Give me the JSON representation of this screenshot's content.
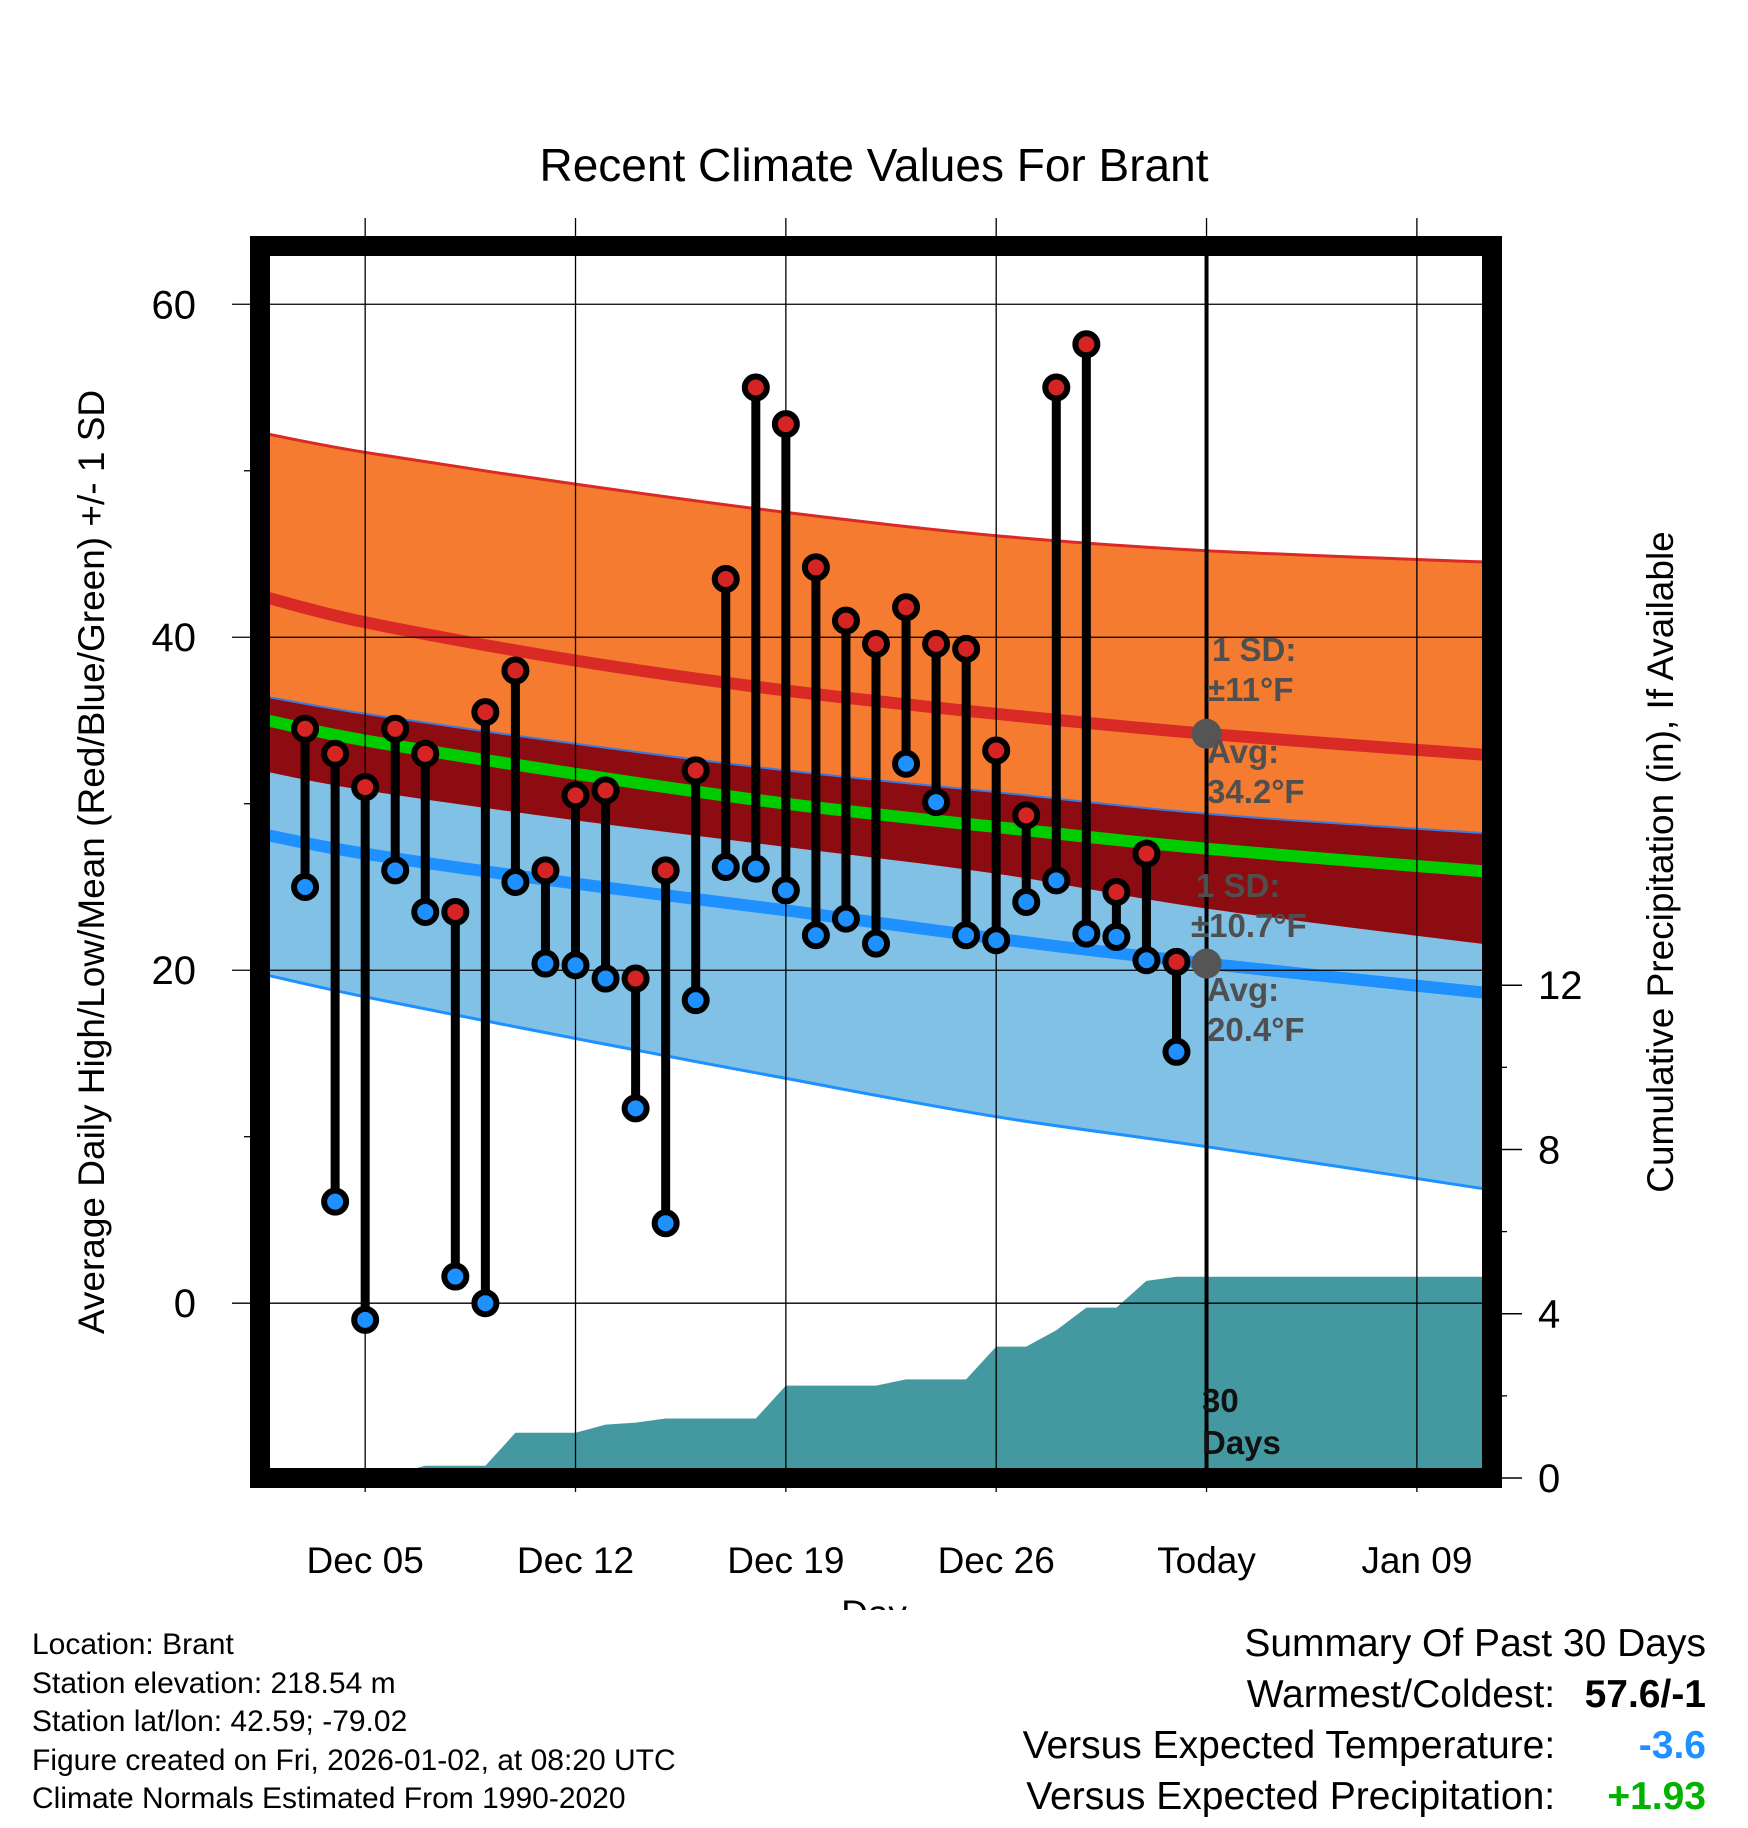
{
  "chart_data": {
    "type": "line",
    "title": "Recent Climate Values For Brant",
    "xlabel": "Day",
    "ylabel": "Average Daily High/Low/Mean (Red/Blue/Green) +/- 1 SD",
    "y2label": "Cumulative Precipitation (in), If Available",
    "ylim": [
      -10.5,
      63.5
    ],
    "y2lim": [
      0,
      30
    ],
    "xlim": [
      -3.5,
      37.5
    ],
    "x_tick_labels": [
      "Dec 05",
      "Dec 12",
      "Dec 19",
      "Dec 26",
      "Today",
      "Jan 09"
    ],
    "x_tick_days": [
      0,
      7,
      14,
      21,
      28,
      35
    ],
    "y_ticks": [
      0,
      20,
      40,
      60
    ],
    "y2_ticks": [
      0,
      4,
      8,
      12
    ],
    "days": [
      -2,
      -1,
      0,
      1,
      2,
      3,
      4,
      5,
      6,
      7,
      8,
      9,
      10,
      11,
      12,
      13,
      14,
      15,
      16,
      17,
      18,
      19,
      20,
      21,
      22,
      23,
      24,
      25,
      26,
      27
    ],
    "highs": [
      34.5,
      33.0,
      31.0,
      34.5,
      33.0,
      23.5,
      35.5,
      38.0,
      26.0,
      30.5,
      30.8,
      19.5,
      26.0,
      32.0,
      43.5,
      55.0,
      52.8,
      44.2,
      41.0,
      39.6,
      41.8,
      39.6,
      39.3,
      33.2,
      29.3,
      55.0,
      57.6,
      24.7,
      27.0,
      20.5
    ],
    "lows": [
      25.0,
      6.1,
      -1.0,
      26.0,
      23.5,
      1.6,
      0.0,
      25.3,
      20.4,
      20.3,
      19.5,
      11.7,
      4.8,
      18.2,
      26.2,
      26.1,
      24.8,
      22.1,
      23.1,
      21.6,
      32.4,
      30.1,
      22.1,
      21.8,
      24.1,
      25.4,
      22.2,
      22.0,
      20.6,
      15.1
    ],
    "normals": {
      "days": [
        -3.5,
        0,
        7,
        14,
        21,
        28,
        37.5
      ],
      "high_avg": [
        42.5,
        40.9,
        38.6,
        36.8,
        35.4,
        34.2,
        32.9
      ],
      "high_upper": [
        52.3,
        51.1,
        49.2,
        47.5,
        46.1,
        45.2,
        44.5
      ],
      "mean_avg": [
        35.1,
        33.8,
        31.8,
        30.0,
        28.6,
        27.3,
        25.9
      ],
      "low_avg": [
        28.2,
        27.0,
        25.2,
        23.6,
        21.9,
        20.4,
        18.6
      ],
      "high_lower": [
        36.5,
        35.4,
        33.6,
        32.0,
        30.7,
        29.4,
        28.2
      ],
      "low_lower": [
        19.8,
        18.4,
        15.9,
        13.5,
        11.2,
        9.4,
        6.8
      ],
      "low_upper": [
        32.0,
        30.8,
        29.0,
        27.4,
        25.8,
        23.7,
        21.5
      ]
    },
    "precip": {
      "days": [
        -3.5,
        -1,
        0,
        1,
        2,
        3,
        4,
        5,
        6,
        7,
        8,
        9,
        10,
        11,
        12,
        13,
        14,
        15,
        16,
        17,
        18,
        19,
        20,
        21,
        22,
        23,
        24,
        25,
        26,
        27,
        28,
        37.5
      ],
      "cum": [
        0,
        0.05,
        0.1,
        0.1,
        0.3,
        0.3,
        0.3,
        1.1,
        1.1,
        1.1,
        1.3,
        1.35,
        1.45,
        1.45,
        1.45,
        1.45,
        2.25,
        2.25,
        2.25,
        2.25,
        2.4,
        2.4,
        2.4,
        3.2,
        3.2,
        3.6,
        4.15,
        4.15,
        4.8,
        4.9,
        4.9,
        4.9
      ]
    },
    "annotations": {
      "high_sd_line1": "1 SD:",
      "high_sd_line2": "±11°F",
      "high_avg_line1": "Avg:",
      "high_avg_line2": "34.2°F",
      "high_avg_value": 34.2,
      "low_sd_line1": "1 SD:",
      "low_sd_line2": "±10.7°F",
      "low_avg_line1": "Avg:",
      "low_avg_line2": "20.4°F",
      "low_avg_value": 20.4,
      "days_line1": "30",
      "days_line2": "Days"
    },
    "colors": {
      "high_band": "#f47b30",
      "high_line": "#d92a25",
      "overlap_band": "#8c0c12",
      "low_band": "#82c1e6",
      "low_line": "#1e90ff",
      "mean_line": "#00cc00",
      "precip": "#4499a1",
      "high_point": "#d42424",
      "low_point": "#1e90ff",
      "marker_gray": "#555555"
    }
  },
  "footer": {
    "location": "Location: Brant",
    "elevation": "Station elevation: 218.54 m",
    "latlon": "Station lat/lon: 42.59; -79.02",
    "created": "Figure created on Fri, 2026-01-02, at 08:20 UTC",
    "normals": "Climate Normals Estimated From 1990-2020"
  },
  "summary": {
    "title": "Summary Of Past 30 Days",
    "warm_cold_label": "Warmest/Coldest:",
    "warm_cold_value": "57.6/-1",
    "temp_label": "Versus Expected Temperature:",
    "temp_value": "-3.6",
    "temp_color": "#1e90ff",
    "precip_label": "Versus Expected Precipitation:",
    "precip_value": "+1.93",
    "precip_color": "#00b300"
  }
}
